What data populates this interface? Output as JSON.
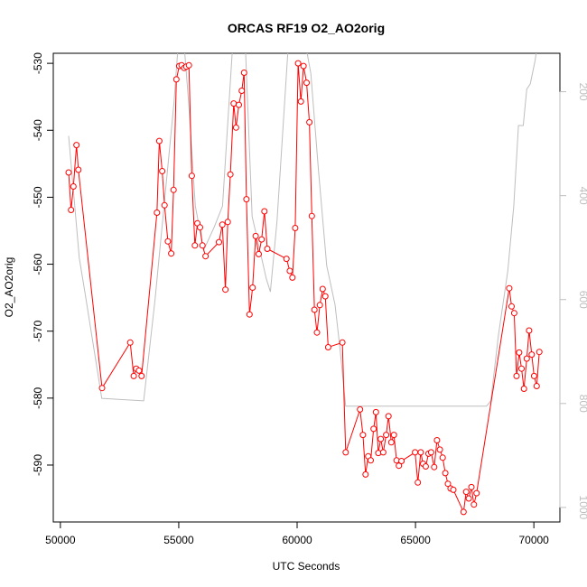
{
  "chart_data": {
    "type": "line",
    "title": "ORCAS RF19 O2_AO2orig",
    "xlabel": "UTC Seconds",
    "ylabel": "O2_AO2orig",
    "xlim": [
      49700,
      71100
    ],
    "ylim": [
      -598.5,
      -528.5
    ],
    "y2lim": [
      1028,
      126
    ],
    "x_ticks": [
      50000,
      55000,
      60000,
      65000,
      70000
    ],
    "x_tick_labels": [
      "50000",
      "55000",
      "60000",
      "65000",
      "70000"
    ],
    "y_ticks": [
      -530,
      -540,
      -550,
      -560,
      -570,
      -580,
      -590
    ],
    "y_tick_labels": [
      "-530",
      "-540",
      "-550",
      "-560",
      "-570",
      "-580",
      "-590"
    ],
    "y2_ticks": [
      200,
      400,
      600,
      800,
      1000
    ],
    "y2_tick_labels": [
      "200",
      "400",
      "600",
      "800",
      "1000"
    ],
    "grid": false,
    "series": [
      {
        "color": "#ff0000",
        "markers": "open-circle",
        "points": [
          [
            50350,
            -546.3
          ],
          [
            50450,
            -551.9
          ],
          [
            50550,
            -548.4
          ],
          [
            50680,
            -542.2
          ],
          [
            50760,
            -545.9
          ],
          [
            51760,
            -578.5
          ],
          [
            52950,
            -571.7
          ],
          [
            53100,
            -576.7
          ],
          [
            53200,
            -575.6
          ],
          [
            53320,
            -575.9
          ],
          [
            53430,
            -576.7
          ],
          [
            54080,
            -552.3
          ],
          [
            54180,
            -541.6
          ],
          [
            54300,
            -546.1
          ],
          [
            54400,
            -551.2
          ],
          [
            54540,
            -556.6
          ],
          [
            54680,
            -558.4
          ],
          [
            54780,
            -548.9
          ],
          [
            54900,
            -532.4
          ],
          [
            55020,
            -530.4
          ],
          [
            55120,
            -530.3
          ],
          [
            55230,
            -530.7
          ],
          [
            55320,
            -530.5
          ],
          [
            55430,
            -530.3
          ],
          [
            55550,
            -546.8
          ],
          [
            55680,
            -557.2
          ],
          [
            55790,
            -553.9
          ],
          [
            55900,
            -554.5
          ],
          [
            56000,
            -557.2
          ],
          [
            56130,
            -558.8
          ],
          [
            56700,
            -556.7
          ],
          [
            56840,
            -554.1
          ],
          [
            56970,
            -563.8
          ],
          [
            57070,
            -553.7
          ],
          [
            57180,
            -546.6
          ],
          [
            57320,
            -536.0
          ],
          [
            57420,
            -539.6
          ],
          [
            57540,
            -536.2
          ],
          [
            57660,
            -534.1
          ],
          [
            57760,
            -531.4
          ],
          [
            57860,
            -550.3
          ],
          [
            57990,
            -567.5
          ],
          [
            58120,
            -563.5
          ],
          [
            58250,
            -555.8
          ],
          [
            58380,
            -558.5
          ],
          [
            58500,
            -556.3
          ],
          [
            58620,
            -552.1
          ],
          [
            58740,
            -557.7
          ],
          [
            59550,
            -559.2
          ],
          [
            59690,
            -561.0
          ],
          [
            59800,
            -562.0
          ],
          [
            59920,
            -554.6
          ],
          [
            60040,
            -530.0
          ],
          [
            60160,
            -535.7
          ],
          [
            60270,
            -530.4
          ],
          [
            60400,
            -532.9
          ],
          [
            60520,
            -538.8
          ],
          [
            60620,
            -552.8
          ],
          [
            60730,
            -566.8
          ],
          [
            60840,
            -570.2
          ],
          [
            60960,
            -566.1
          ],
          [
            61080,
            -563.7
          ],
          [
            61190,
            -564.8
          ],
          [
            61310,
            -572.4
          ],
          [
            61910,
            -571.7
          ],
          [
            62050,
            -588.1
          ],
          [
            62660,
            -581.7
          ],
          [
            62780,
            -585.5
          ],
          [
            62890,
            -591.4
          ],
          [
            63000,
            -588.7
          ],
          [
            63110,
            -589.3
          ],
          [
            63230,
            -584.6
          ],
          [
            63330,
            -582.1
          ],
          [
            63430,
            -588.2
          ],
          [
            63530,
            -586.1
          ],
          [
            63640,
            -588.1
          ],
          [
            63760,
            -585.5
          ],
          [
            63860,
            -582.7
          ],
          [
            63980,
            -586.6
          ],
          [
            64090,
            -585.5
          ],
          [
            64200,
            -589.3
          ],
          [
            64300,
            -590.1
          ],
          [
            64410,
            -589.4
          ],
          [
            64980,
            -588.1
          ],
          [
            65100,
            -592.6
          ],
          [
            65220,
            -588.1
          ],
          [
            65320,
            -589.8
          ],
          [
            65430,
            -590.2
          ],
          [
            65550,
            -588.3
          ],
          [
            65660,
            -588.1
          ],
          [
            65790,
            -590.3
          ],
          [
            65910,
            -586.3
          ],
          [
            66030,
            -587.7
          ],
          [
            66150,
            -588.9
          ],
          [
            66260,
            -591.2
          ],
          [
            66370,
            -592.8
          ],
          [
            66480,
            -593.5
          ],
          [
            66600,
            -593.7
          ],
          [
            67030,
            -597.0
          ],
          [
            67140,
            -594.0
          ],
          [
            67250,
            -595.0
          ],
          [
            67360,
            -593.3
          ],
          [
            67470,
            -595.9
          ],
          [
            67580,
            -594.2
          ],
          [
            68960,
            -563.6
          ],
          [
            69060,
            -566.3
          ],
          [
            69170,
            -567.3
          ],
          [
            69270,
            -576.7
          ],
          [
            69380,
            -573.2
          ],
          [
            69480,
            -575.6
          ],
          [
            69580,
            -578.6
          ],
          [
            69700,
            -574.1
          ],
          [
            69800,
            -569.9
          ],
          [
            69910,
            -573.5
          ],
          [
            70010,
            -576.7
          ],
          [
            70120,
            -578.2
          ],
          [
            70230,
            -573.1
          ]
        ]
      },
      {
        "color": "#bebebe",
        "axis": "right",
        "points": [
          [
            50350,
            285
          ],
          [
            50800,
            520
          ],
          [
            51050,
            590
          ],
          [
            51750,
            790
          ],
          [
            53520,
            795
          ],
          [
            54000,
            600
          ],
          [
            54800,
            220
          ],
          [
            55000,
            95
          ],
          [
            55200,
            95
          ],
          [
            55400,
            210
          ],
          [
            55700,
            420
          ],
          [
            56050,
            505
          ],
          [
            56500,
            460
          ],
          [
            56850,
            420
          ],
          [
            57300,
            95
          ],
          [
            57800,
            95
          ],
          [
            58100,
            440
          ],
          [
            58400,
            500
          ],
          [
            58700,
            560
          ],
          [
            58870,
            585
          ],
          [
            59150,
            450
          ],
          [
            59650,
            95
          ],
          [
            60030,
            95
          ],
          [
            60300,
            95
          ],
          [
            60580,
            165
          ],
          [
            60900,
            350
          ],
          [
            61250,
            535
          ],
          [
            61600,
            610
          ],
          [
            61800,
            690
          ],
          [
            62050,
            805
          ],
          [
            68000,
            805
          ],
          [
            68180,
            795
          ],
          [
            68500,
            670
          ],
          [
            68900,
            545
          ],
          [
            69150,
            420
          ],
          [
            69350,
            265
          ],
          [
            69550,
            265
          ],
          [
            69700,
            195
          ],
          [
            69850,
            185
          ],
          [
            70050,
            140
          ],
          [
            70200,
            95
          ]
        ]
      }
    ]
  }
}
